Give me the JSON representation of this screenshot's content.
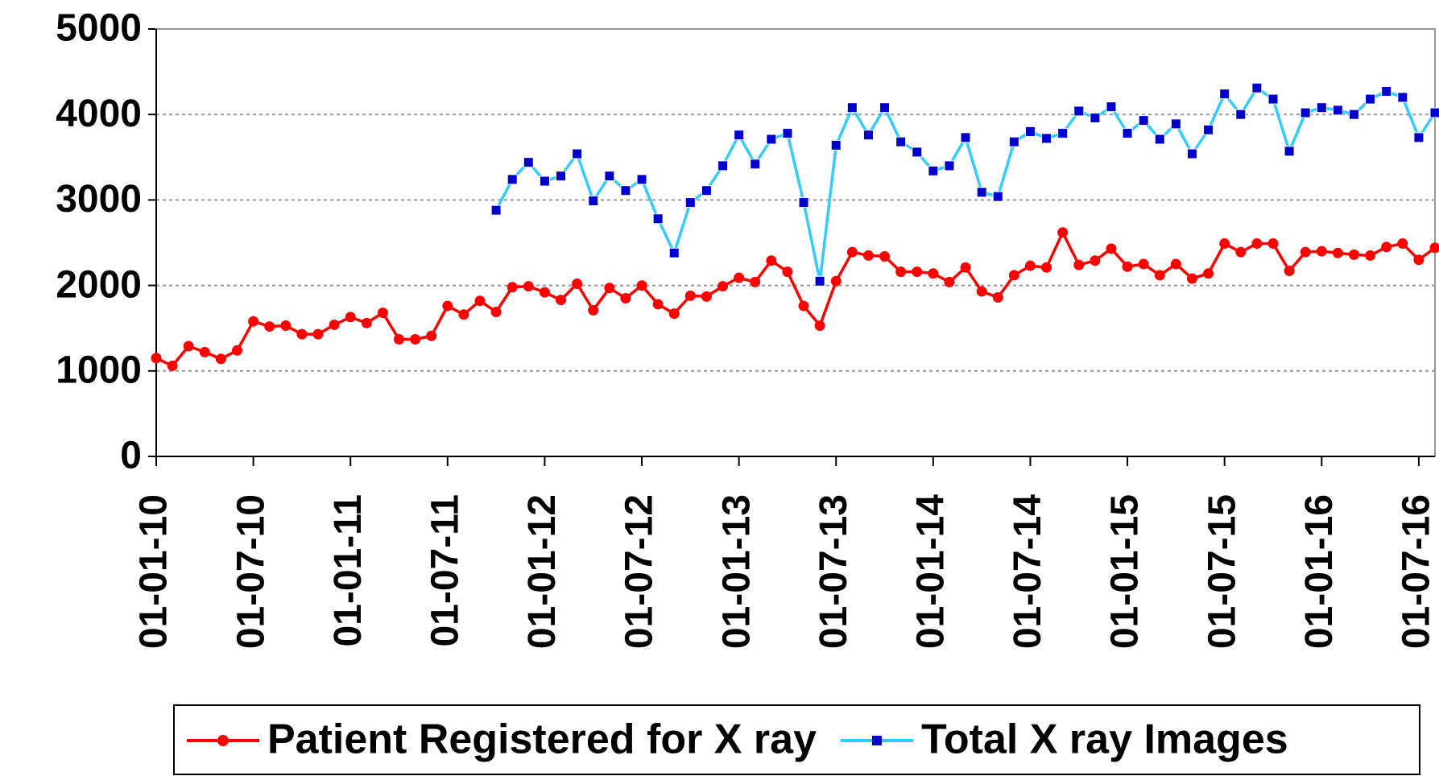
{
  "chart_data": {
    "type": "line",
    "categories": [
      "01-01-10",
      null,
      null,
      null,
      null,
      null,
      "01-07-10",
      null,
      null,
      null,
      null,
      null,
      "01-01-11",
      null,
      null,
      null,
      null,
      null,
      "01-07-11",
      null,
      null,
      null,
      null,
      null,
      "01-01-12",
      null,
      null,
      null,
      null,
      null,
      "01-07-12",
      null,
      null,
      null,
      null,
      null,
      "01-01-13",
      null,
      null,
      null,
      null,
      null,
      "01-07-13",
      null,
      null,
      null,
      null,
      null,
      "01-01-14",
      null,
      null,
      null,
      null,
      null,
      "01-07-14",
      null,
      null,
      null,
      null,
      null,
      "01-01-15",
      null,
      null,
      null,
      null,
      null,
      "01-07-15",
      null,
      null,
      null,
      null,
      null,
      "01-01-16",
      null,
      null,
      null,
      null,
      null,
      "01-07-16",
      null
    ],
    "series": [
      {
        "name": "Patient Registered for X ray",
        "color": "#ff0000",
        "marker": "circle",
        "marker_color": "#ff0000",
        "values": [
          1150,
          1060,
          1290,
          1220,
          1140,
          1240,
          1580,
          1520,
          1530,
          1430,
          1430,
          1540,
          1630,
          1560,
          1680,
          1370,
          1370,
          1410,
          1760,
          1660,
          1820,
          1690,
          1980,
          1990,
          1920,
          1830,
          2020,
          1710,
          1970,
          1850,
          2000,
          1780,
          1670,
          1880,
          1870,
          1990,
          2090,
          2040,
          2290,
          2160,
          1760,
          1530,
          2050,
          2390,
          2350,
          2340,
          2160,
          2160,
          2140,
          2040,
          2210,
          1930,
          1860,
          2120,
          2230,
          2210,
          2620,
          2240,
          2290,
          2430,
          2220,
          2250,
          2120,
          2250,
          2080,
          2140,
          2490,
          2390,
          2490,
          2490,
          2170,
          2390,
          2400,
          2380,
          2360,
          2350,
          2450,
          2490,
          2300,
          2440
        ]
      },
      {
        "name": "Total X ray Images",
        "color": "#33ccff",
        "marker": "square",
        "marker_color": "#0000cc",
        "values": [
          null,
          null,
          null,
          null,
          null,
          null,
          null,
          null,
          null,
          null,
          null,
          null,
          null,
          null,
          null,
          null,
          null,
          null,
          null,
          null,
          null,
          2880,
          3240,
          3440,
          3220,
          3280,
          3540,
          2990,
          3280,
          3110,
          3240,
          2780,
          2380,
          2970,
          3110,
          3400,
          3760,
          3420,
          3710,
          3780,
          2970,
          2050,
          3640,
          4080,
          3760,
          4080,
          3680,
          3560,
          3340,
          3400,
          3730,
          3090,
          3040,
          3680,
          3800,
          3720,
          3780,
          4040,
          3960,
          4090,
          3780,
          3930,
          3710,
          3890,
          3540,
          3820,
          4240,
          4000,
          4310,
          4180,
          3570,
          4020,
          4080,
          4050,
          4000,
          4180,
          4270,
          4200,
          3730,
          4020
        ]
      }
    ],
    "ylim": [
      0,
      5000
    ],
    "yticks": [
      0,
      1000,
      2000,
      3000,
      4000,
      5000
    ],
    "grid": true,
    "legend": "bottom"
  }
}
